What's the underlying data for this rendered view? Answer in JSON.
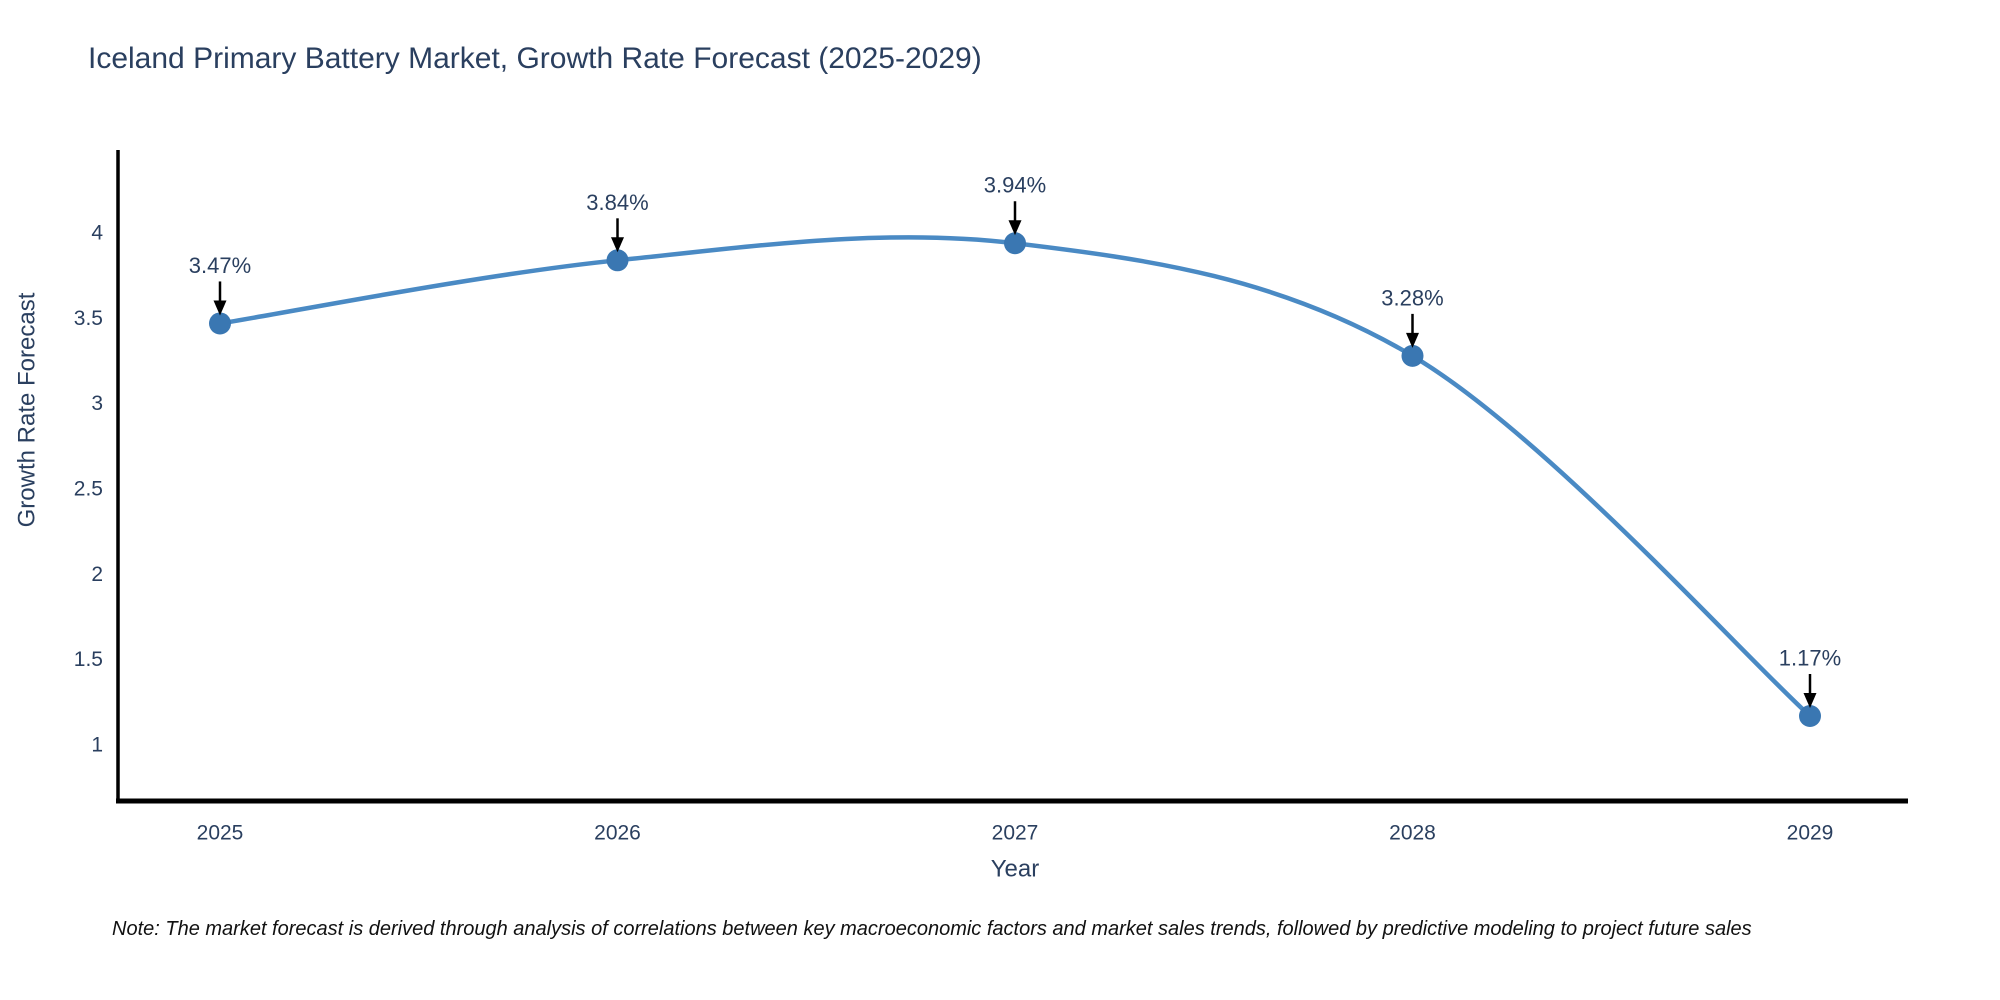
{
  "title": "Iceland Primary Battery Market, Growth Rate Forecast (2025-2029)",
  "note": "Note: The market forecast is derived through analysis of correlations between key macroeconomic factors and market sales trends, followed by predictive modeling to project future sales",
  "chart_data": {
    "type": "line",
    "x": [
      "2025",
      "2026",
      "2027",
      "2028",
      "2029"
    ],
    "values": [
      3.47,
      3.84,
      3.94,
      3.28,
      1.17
    ],
    "point_labels": [
      "3.47%",
      "3.84%",
      "3.94%",
      "3.28%",
      "1.17%"
    ],
    "title": "Iceland Primary Battery Market, Growth Rate Forecast (2025-2029)",
    "xlabel": "Year",
    "ylabel": "Growth Rate Forecast",
    "yticks": [
      4,
      3.5,
      3,
      2.5,
      2,
      1.5,
      1
    ],
    "ylim": [
      0.68,
      4.47
    ],
    "grid": false,
    "legend": false,
    "line_shape": "spline",
    "annotation_arrows": true
  },
  "colors": {
    "line": "#4a8ac4",
    "marker": "#3a77b2",
    "axis": "#000000",
    "text": "#2a3f5f",
    "arrow": "#000000",
    "note_text": "#111111",
    "background": "#ffffff"
  }
}
